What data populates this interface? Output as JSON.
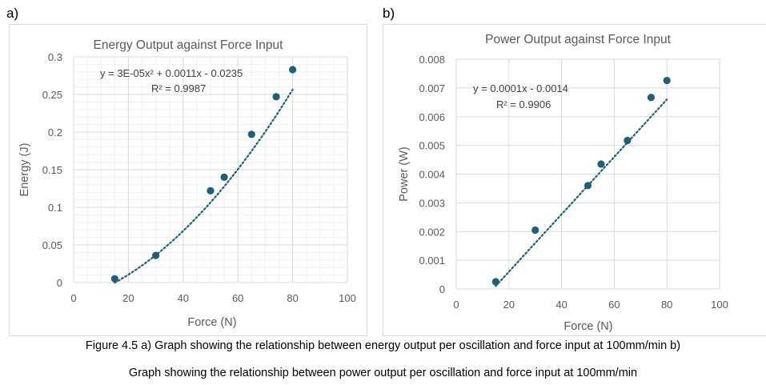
{
  "panel_labels": [
    "a)",
    "b)"
  ],
  "caption": {
    "line1": "Figure 4.5 a) Graph showing the relationship between energy output per oscillation and force input at 100mm/min b)",
    "line2": "Graph showing the relationship between power output per oscillation and force input at 100mm/min"
  },
  "chart_data": [
    {
      "type": "scatter",
      "title": "Energy Output against Force Input",
      "xlabel": "Force (N)",
      "ylabel": "Energy (J)",
      "xlim": [
        0,
        100
      ],
      "ylim": [
        0,
        0.3
      ],
      "xticks": [
        0,
        20,
        40,
        60,
        80,
        100
      ],
      "yticks": [
        0,
        0.05,
        0.1,
        0.15,
        0.2,
        0.25,
        0.3
      ],
      "ytick_labels": [
        "0",
        "0.05",
        "0.1",
        "0.15",
        "0.2",
        "0.25",
        "0.3"
      ],
      "grid": true,
      "minor_grid": true,
      "marker_color": "#1f5f7a",
      "trend_color": "#1f5f7a",
      "x": [
        15,
        30,
        50,
        55,
        65,
        74,
        80
      ],
      "y": [
        0.005,
        0.036,
        0.122,
        0.14,
        0.197,
        0.247,
        0.283
      ],
      "trendline": {
        "kind": "poly2",
        "a": 3e-05,
        "b": 0.0011,
        "c": -0.0235,
        "x_range": [
          15,
          80
        ]
      },
      "equation": "y = 3E-05x² + 0.0011x - 0.0235",
      "r2": "R² = 0.9987"
    },
    {
      "type": "scatter",
      "title": "Power Output against Force Input",
      "xlabel": "Force (N)",
      "ylabel": "Power (W)",
      "xlim": [
        0,
        100
      ],
      "ylim": [
        0,
        0.008
      ],
      "xticks": [
        0,
        20,
        40,
        60,
        80,
        100
      ],
      "yticks": [
        0,
        0.001,
        0.002,
        0.003,
        0.004,
        0.005,
        0.006,
        0.007,
        0.008
      ],
      "ytick_labels": [
        "0",
        "0.001",
        "0.002",
        "0.003",
        "0.004",
        "0.005",
        "0.006",
        "0.007",
        "0.008"
      ],
      "grid": true,
      "minor_grid": false,
      "marker_color": "#1f5f7a",
      "trend_color": "#1f5f7a",
      "x": [
        15,
        30,
        50,
        55,
        65,
        74,
        80
      ],
      "y": [
        0.00025,
        0.00205,
        0.0036,
        0.00435,
        0.00517,
        0.00667,
        0.00726
      ],
      "trendline": {
        "kind": "linear",
        "a": 0,
        "b": 0.0001,
        "c": -0.0014,
        "x_range": [
          15,
          80
        ]
      },
      "equation": "y = 0.0001x - 0.0014",
      "r2": "R² = 0.9906"
    }
  ]
}
